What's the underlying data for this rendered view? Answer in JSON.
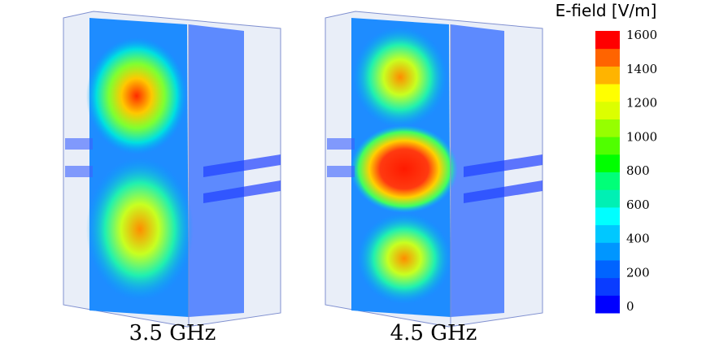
{
  "panels": [
    {
      "label": "3.5 GHz"
    },
    {
      "label": "4.5 GHz"
    }
  ],
  "colorbar": {
    "title": "E-field [V/m]",
    "ticks": [
      0,
      200,
      400,
      600,
      800,
      1000,
      1200,
      1400,
      1600
    ],
    "colors": [
      "#0000ff",
      "#0a3cff",
      "#0064ff",
      "#0096ff",
      "#00c8ff",
      "#00ffff",
      "#00f0b4",
      "#00ff78",
      "#00ff00",
      "#50ff00",
      "#96ff00",
      "#dcff00",
      "#ffff00",
      "#ffb400",
      "#ff6400",
      "#ff0000"
    ]
  }
}
